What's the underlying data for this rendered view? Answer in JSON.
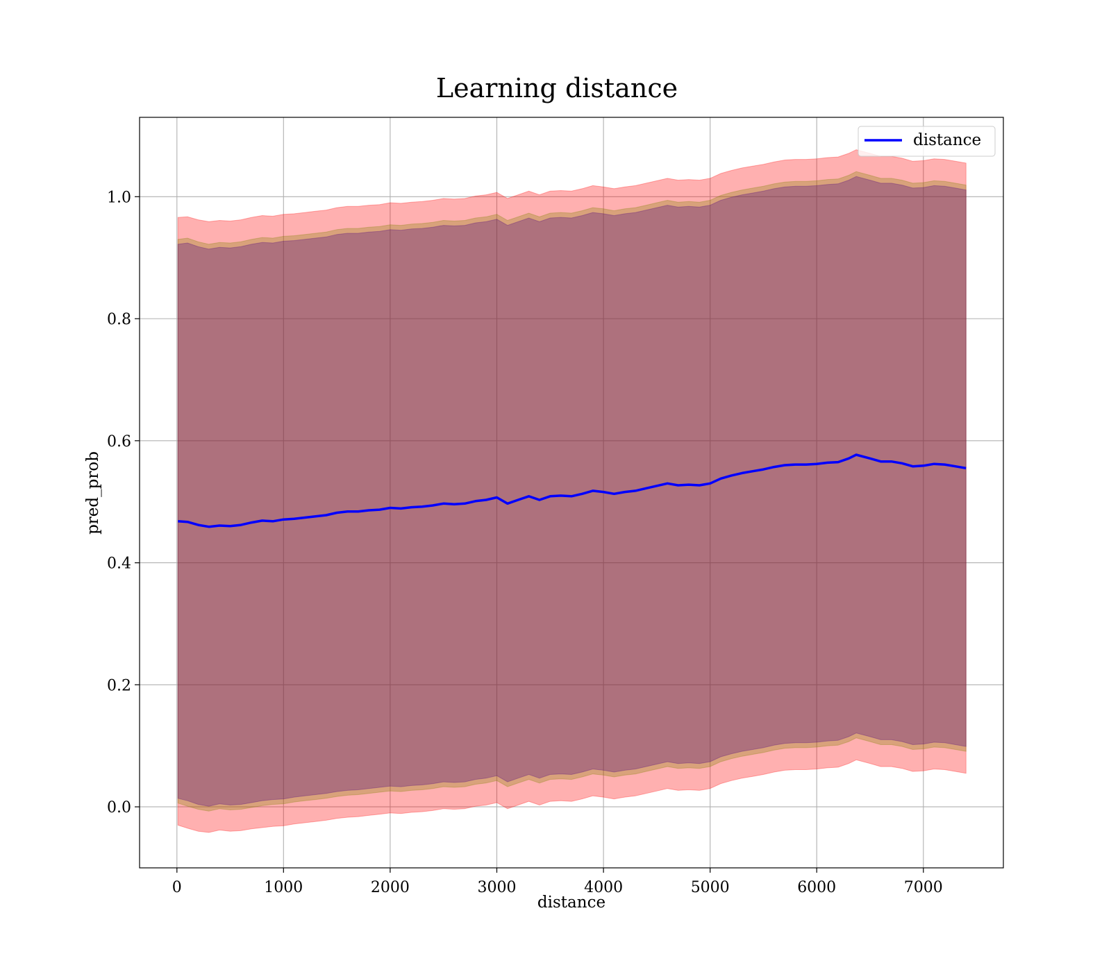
{
  "chart_data": {
    "type": "line",
    "title": "Learning distance",
    "xlabel": "distance",
    "ylabel": "pred_prob",
    "xlim": [
      -350,
      7750
    ],
    "ylim": [
      -0.1,
      1.13
    ],
    "grid": true,
    "legend_position": "top-right",
    "x_ticks": [
      0,
      1000,
      2000,
      3000,
      4000,
      5000,
      6000,
      7000
    ],
    "y_ticks": [
      0.0,
      0.2,
      0.4,
      0.6,
      0.8,
      1.0
    ],
    "y_tick_labels": [
      "0.0",
      "0.2",
      "0.4",
      "0.6",
      "0.8",
      "1.0"
    ],
    "x": [
      10,
      100,
      200,
      300,
      400,
      500,
      600,
      700,
      800,
      900,
      1000,
      1100,
      1200,
      1300,
      1400,
      1500,
      1600,
      1700,
      1800,
      1900,
      2000,
      2100,
      2200,
      2300,
      2400,
      2500,
      2600,
      2700,
      2800,
      2900,
      3000,
      3100,
      3200,
      3300,
      3400,
      3500,
      3600,
      3700,
      3800,
      3900,
      4000,
      4100,
      4200,
      4300,
      4400,
      4500,
      4600,
      4700,
      4800,
      4900,
      5000,
      5100,
      5200,
      5300,
      5400,
      5500,
      5600,
      5700,
      5800,
      5900,
      6000,
      6100,
      6200,
      6300,
      6370,
      6500,
      6600,
      6700,
      6800,
      6900,
      7000,
      7100,
      7200,
      7300,
      7400
    ],
    "series": [
      {
        "name": "distance",
        "color": "#0000ff",
        "values": [
          0.468,
          0.467,
          0.462,
          0.459,
          0.461,
          0.46,
          0.462,
          0.466,
          0.469,
          0.468,
          0.471,
          0.472,
          0.474,
          0.476,
          0.478,
          0.482,
          0.484,
          0.484,
          0.486,
          0.487,
          0.49,
          0.489,
          0.491,
          0.492,
          0.494,
          0.497,
          0.496,
          0.497,
          0.501,
          0.503,
          0.507,
          0.497,
          0.503,
          0.509,
          0.503,
          0.509,
          0.51,
          0.509,
          0.513,
          0.518,
          0.516,
          0.513,
          0.516,
          0.518,
          0.522,
          0.526,
          0.53,
          0.527,
          0.528,
          0.527,
          0.53,
          0.538,
          0.543,
          0.547,
          0.55,
          0.553,
          0.557,
          0.56,
          0.561,
          0.561,
          0.562,
          0.564,
          0.565,
          0.571,
          0.577,
          0.571,
          0.566,
          0.566,
          0.563,
          0.558,
          0.559,
          0.562,
          0.561,
          0.558,
          0.555
        ]
      }
    ],
    "bands": [
      {
        "color": "#ff0000",
        "opacity": 0.31,
        "lower": [
          -0.03,
          -0.035,
          -0.04,
          -0.042,
          -0.038,
          -0.04,
          -0.039,
          -0.036,
          -0.034,
          -0.032,
          -0.031,
          -0.028,
          -0.026,
          -0.024,
          -0.022,
          -0.019,
          -0.017,
          -0.016,
          -0.014,
          -0.012,
          -0.01,
          -0.011,
          -0.009,
          -0.008,
          -0.006,
          -0.003,
          -0.004,
          -0.003,
          0.001,
          0.003,
          0.007,
          -0.003,
          0.003,
          0.009,
          0.003,
          0.009,
          0.01,
          0.009,
          0.013,
          0.018,
          0.016,
          0.013,
          0.016,
          0.018,
          0.022,
          0.026,
          0.03,
          0.027,
          0.028,
          0.027,
          0.03,
          0.038,
          0.043,
          0.047,
          0.05,
          0.053,
          0.057,
          0.06,
          0.061,
          0.061,
          0.062,
          0.064,
          0.065,
          0.071,
          0.077,
          0.071,
          0.066,
          0.066,
          0.063,
          0.058,
          0.059,
          0.062,
          0.061,
          0.058,
          0.055
        ],
        "upper": [
          0.966,
          0.967,
          0.962,
          0.959,
          0.961,
          0.96,
          0.962,
          0.966,
          0.969,
          0.968,
          0.971,
          0.972,
          0.974,
          0.976,
          0.978,
          0.982,
          0.984,
          0.984,
          0.986,
          0.987,
          0.99,
          0.989,
          0.991,
          0.992,
          0.994,
          0.997,
          0.996,
          0.997,
          1.001,
          1.003,
          1.007,
          0.997,
          1.003,
          1.009,
          1.003,
          1.009,
          1.01,
          1.009,
          1.013,
          1.018,
          1.016,
          1.013,
          1.016,
          1.018,
          1.022,
          1.026,
          1.03,
          1.027,
          1.028,
          1.027,
          1.03,
          1.038,
          1.043,
          1.047,
          1.05,
          1.053,
          1.057,
          1.06,
          1.061,
          1.061,
          1.062,
          1.064,
          1.065,
          1.071,
          1.077,
          1.071,
          1.066,
          1.066,
          1.063,
          1.058,
          1.059,
          1.062,
          1.061,
          1.058,
          1.055
        ]
      },
      {
        "color": "#808000",
        "opacity": 0.3,
        "lower": [
          0.006,
          0.001,
          -0.004,
          -0.007,
          -0.003,
          -0.005,
          -0.004,
          -0.001,
          0.002,
          0.004,
          0.005,
          0.008,
          0.01,
          0.012,
          0.014,
          0.017,
          0.019,
          0.02,
          0.022,
          0.024,
          0.026,
          0.025,
          0.027,
          0.028,
          0.03,
          0.033,
          0.032,
          0.033,
          0.037,
          0.039,
          0.043,
          0.033,
          0.039,
          0.045,
          0.039,
          0.045,
          0.046,
          0.045,
          0.049,
          0.054,
          0.052,
          0.049,
          0.052,
          0.054,
          0.058,
          0.062,
          0.066,
          0.063,
          0.064,
          0.063,
          0.066,
          0.074,
          0.079,
          0.083,
          0.086,
          0.089,
          0.093,
          0.096,
          0.097,
          0.097,
          0.098,
          0.1,
          0.101,
          0.107,
          0.113,
          0.107,
          0.102,
          0.102,
          0.099,
          0.094,
          0.095,
          0.098,
          0.097,
          0.094,
          0.091
        ],
        "upper": [
          0.93,
          0.932,
          0.926,
          0.922,
          0.925,
          0.924,
          0.926,
          0.93,
          0.933,
          0.932,
          0.935,
          0.936,
          0.938,
          0.94,
          0.942,
          0.946,
          0.948,
          0.948,
          0.95,
          0.951,
          0.954,
          0.953,
          0.955,
          0.956,
          0.958,
          0.961,
          0.96,
          0.961,
          0.965,
          0.967,
          0.971,
          0.961,
          0.967,
          0.973,
          0.967,
          0.973,
          0.974,
          0.973,
          0.977,
          0.982,
          0.98,
          0.977,
          0.98,
          0.982,
          0.986,
          0.99,
          0.994,
          0.991,
          0.992,
          0.991,
          0.994,
          1.002,
          1.007,
          1.011,
          1.014,
          1.017,
          1.021,
          1.024,
          1.025,
          1.025,
          1.026,
          1.028,
          1.029,
          1.035,
          1.041,
          1.035,
          1.03,
          1.03,
          1.027,
          1.022,
          1.023,
          1.026,
          1.025,
          1.022,
          1.019
        ]
      },
      {
        "color": "#4b0082",
        "opacity": 0.3,
        "lower": [
          0.014,
          0.01,
          0.004,
          0.001,
          0.005,
          0.003,
          0.004,
          0.007,
          0.01,
          0.012,
          0.013,
          0.016,
          0.018,
          0.02,
          0.022,
          0.025,
          0.027,
          0.028,
          0.03,
          0.032,
          0.034,
          0.033,
          0.035,
          0.036,
          0.038,
          0.041,
          0.04,
          0.041,
          0.045,
          0.047,
          0.051,
          0.041,
          0.047,
          0.053,
          0.047,
          0.053,
          0.054,
          0.053,
          0.057,
          0.062,
          0.06,
          0.057,
          0.06,
          0.062,
          0.066,
          0.07,
          0.074,
          0.071,
          0.072,
          0.071,
          0.074,
          0.082,
          0.087,
          0.091,
          0.094,
          0.097,
          0.101,
          0.104,
          0.105,
          0.105,
          0.106,
          0.108,
          0.109,
          0.115,
          0.121,
          0.115,
          0.11,
          0.11,
          0.107,
          0.102,
          0.103,
          0.106,
          0.105,
          0.102,
          0.099
        ],
        "upper": [
          0.922,
          0.924,
          0.918,
          0.914,
          0.917,
          0.916,
          0.918,
          0.922,
          0.925,
          0.924,
          0.927,
          0.928,
          0.93,
          0.932,
          0.934,
          0.938,
          0.94,
          0.94,
          0.942,
          0.943,
          0.946,
          0.945,
          0.947,
          0.948,
          0.95,
          0.953,
          0.952,
          0.953,
          0.957,
          0.959,
          0.963,
          0.953,
          0.959,
          0.965,
          0.959,
          0.965,
          0.966,
          0.965,
          0.969,
          0.974,
          0.972,
          0.969,
          0.972,
          0.974,
          0.978,
          0.982,
          0.986,
          0.983,
          0.984,
          0.983,
          0.986,
          0.994,
          0.999,
          1.003,
          1.006,
          1.009,
          1.013,
          1.016,
          1.017,
          1.017,
          1.018,
          1.02,
          1.021,
          1.027,
          1.033,
          1.027,
          1.022,
          1.022,
          1.019,
          1.014,
          1.015,
          1.018,
          1.017,
          1.014,
          1.011
        ]
      }
    ]
  }
}
